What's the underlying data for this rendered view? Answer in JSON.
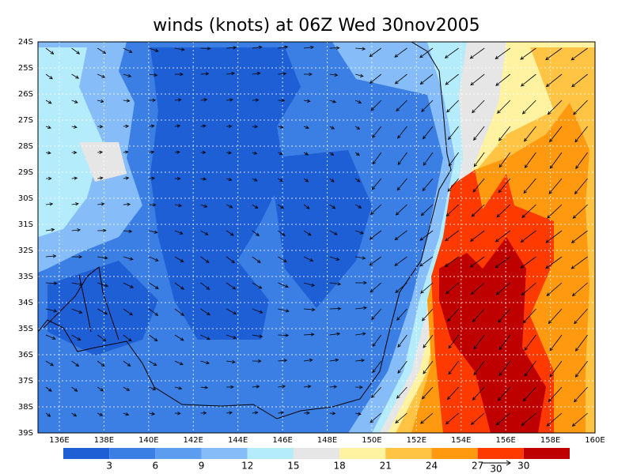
{
  "title": "winds (knots) at 06Z Wed 30nov2005",
  "lat_labels": [
    "24S",
    "25S",
    "26S",
    "27S",
    "28S",
    "29S",
    "30S",
    "31S",
    "32S",
    "33S",
    "34S",
    "35S",
    "36S",
    "37S",
    "38S",
    "39S"
  ],
  "lon_labels": [
    "136E",
    "138E",
    "140E",
    "142E",
    "144E",
    "146E",
    "148E",
    "150E",
    "152E",
    "154E",
    "156E",
    "158E",
    "160E"
  ],
  "colorbar": {
    "levels": [
      3,
      6,
      9,
      12,
      15,
      18,
      21,
      24,
      27,
      30
    ],
    "colors": [
      "#1f5fd6",
      "#3b7fe4",
      "#5d9df0",
      "#86bdf8",
      "#b4ecfb",
      "#e6e6e6",
      "#fff2a0",
      "#ffc443",
      "#ff9a10",
      "#ff3a00",
      "#be0000"
    ]
  },
  "reference_vector": "30"
}
